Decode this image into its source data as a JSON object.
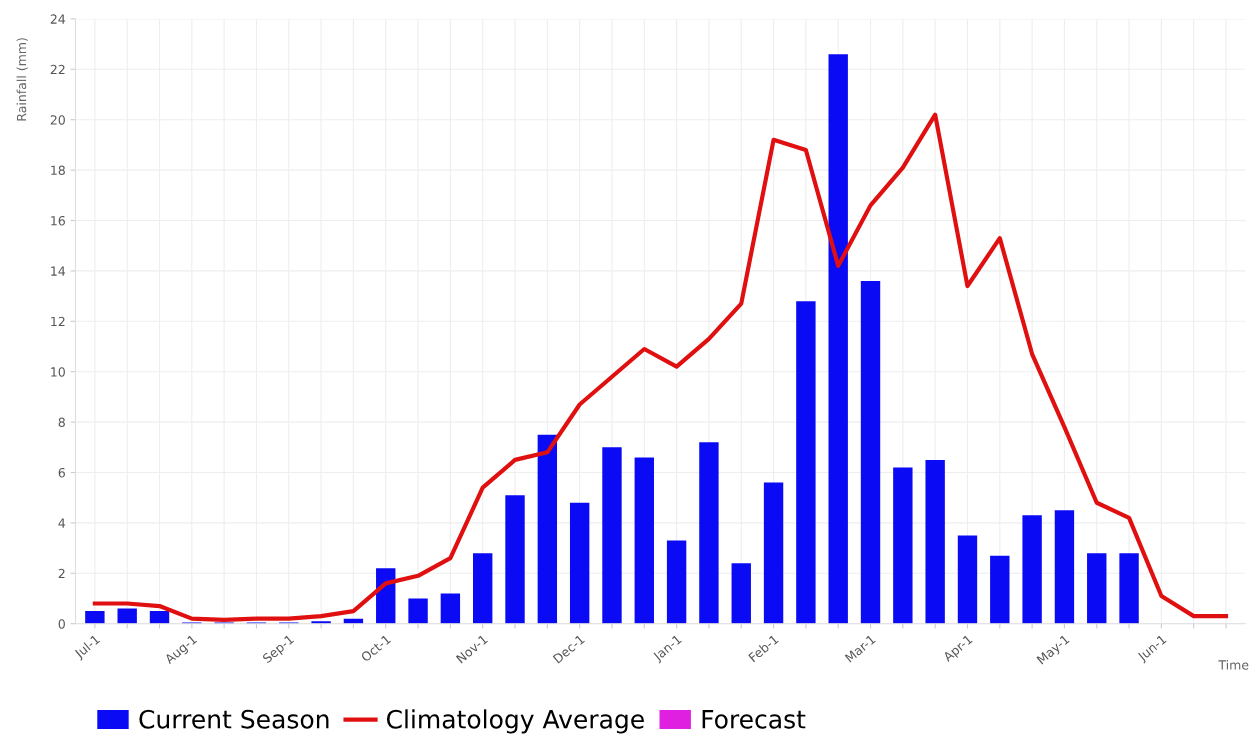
{
  "chart_data": {
    "type": "bar",
    "ylabel": "Rainfall (mm)",
    "xlabel": "Time",
    "categories": [
      "Jul-1",
      null,
      null,
      "Aug-1",
      null,
      null,
      "Sep-1",
      null,
      null,
      "Oct-1",
      null,
      null,
      "Nov-1",
      null,
      null,
      "Dec-1",
      null,
      null,
      "Jan-1",
      null,
      null,
      "Feb-1",
      null,
      null,
      "Mar-1",
      null,
      null,
      "Apr-1",
      null,
      null,
      "May-1",
      null,
      null,
      "Jun-1",
      null,
      null
    ],
    "series": [
      {
        "name": "Current Season",
        "color": "#0a0af5",
        "values": [
          0.5,
          0.6,
          0.5,
          0.05,
          0.05,
          0.05,
          0.05,
          0.1,
          0.2,
          2.2,
          1.0,
          1.2,
          2.8,
          5.1,
          7.5,
          4.8,
          7.0,
          6.6,
          3.3,
          7.2,
          2.4,
          5.6,
          12.8,
          22.6,
          13.6,
          6.2,
          6.5,
          3.5,
          2.7,
          4.3,
          4.5,
          2.8,
          2.8,
          null,
          null,
          null
        ]
      },
      {
        "name": "Climatology Average",
        "type": "line",
        "color": "#e01010",
        "values": [
          0.8,
          0.8,
          0.7,
          0.2,
          0.15,
          0.2,
          0.2,
          0.3,
          0.5,
          1.6,
          1.9,
          2.6,
          5.4,
          6.5,
          6.8,
          8.7,
          9.8,
          10.9,
          10.2,
          11.3,
          12.7,
          19.2,
          18.8,
          14.2,
          16.6,
          18.1,
          20.2,
          13.4,
          15.3,
          10.7,
          7.8,
          4.8,
          4.2,
          1.1,
          0.3,
          0.3
        ]
      },
      {
        "name": "Forecast",
        "color": "#e020e0",
        "values": [
          null,
          null,
          null,
          null,
          null,
          null,
          null,
          null,
          null,
          null,
          null,
          null,
          null,
          null,
          null,
          null,
          null,
          null,
          null,
          null,
          null,
          null,
          null,
          null,
          null,
          null,
          null,
          null,
          null,
          null,
          null,
          null,
          null,
          null,
          null,
          null
        ]
      }
    ],
    "ylim": [
      0,
      24
    ],
    "yticks": [
      0,
      2,
      4,
      6,
      8,
      10,
      12,
      14,
      16,
      18,
      20,
      22,
      24
    ],
    "grid": true,
    "legend": "bottom",
    "marker": "none",
    "line_style": "solid"
  }
}
